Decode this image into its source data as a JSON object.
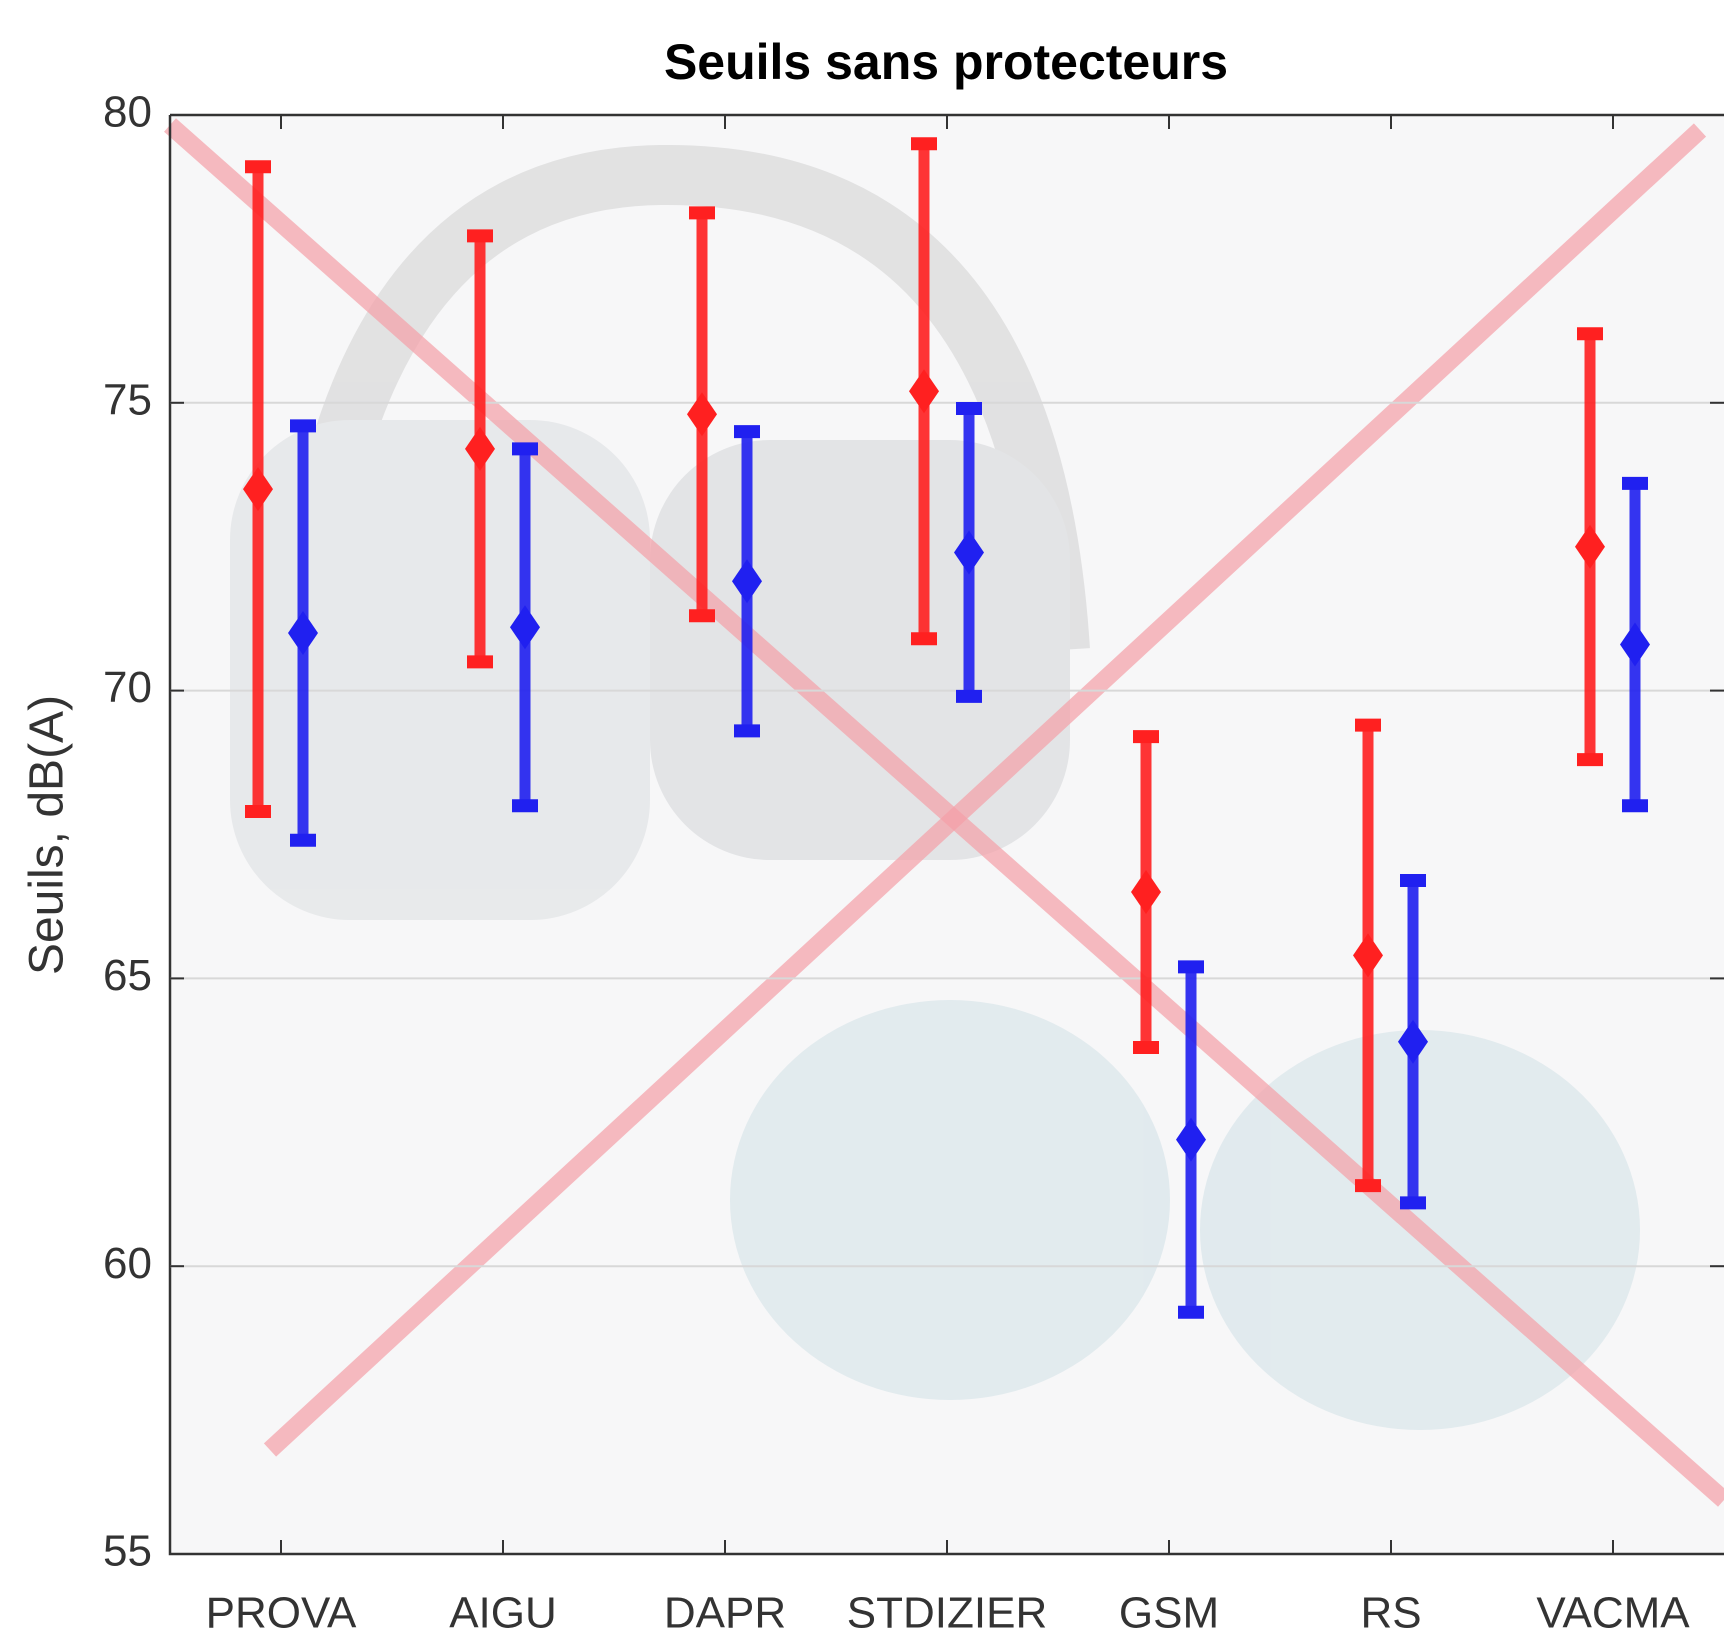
{
  "chart_data": {
    "type": "errorbar",
    "title": "Seuils sans protecteurs",
    "y_label": "Seuils, dB(A)",
    "categories": [
      "PROVA",
      "AIGU",
      "DAPR",
      "STDIZIER",
      "GSM",
      "RS",
      "VACMA"
    ],
    "series": [
      {
        "color": "#ff2020",
        "values": [
          73.5,
          74.2,
          74.8,
          75.2,
          66.5,
          65.4,
          72.5
        ],
        "errors": [
          5.6,
          3.7,
          3.5,
          4.3,
          2.7,
          4.0,
          3.7
        ]
      },
      {
        "color": "#2020f0",
        "values": [
          71.0,
          71.1,
          71.9,
          72.4,
          62.2,
          63.9,
          70.8
        ],
        "errors": [
          3.6,
          3.1,
          2.6,
          2.5,
          3.0,
          2.8,
          2.8
        ]
      }
    ],
    "ylim": [
      55,
      80
    ],
    "yticks": [
      55,
      60,
      65,
      70,
      75,
      80
    ],
    "grid": true
  }
}
